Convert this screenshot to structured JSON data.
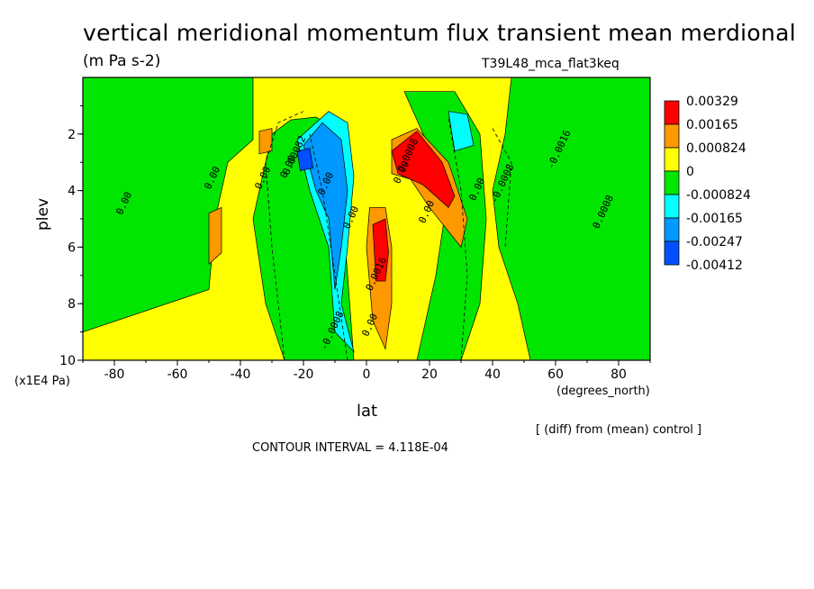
{
  "chart_data": {
    "type": "heatmap",
    "title": "vertical meridional momentum flux transient mean merdional",
    "units": "(m Pa s-2)",
    "experiment": "T39L48_mca_flat3keq",
    "xlabel": "lat",
    "x_units": "(degrees_north)",
    "ylabel": "plev",
    "y_units": "(x1E4 Pa)",
    "x_ticks": [
      "-80",
      "-60",
      "-40",
      "-20",
      "0",
      "20",
      "40",
      "60",
      "80"
    ],
    "y_ticks": [
      "2",
      "4",
      "6",
      "8",
      "10"
    ],
    "xlim": [
      -90,
      90
    ],
    "ylim": [
      10,
      0
    ],
    "note": "[ (diff) from (mean) control ]",
    "contour_interval": "CONTOUR INTERVAL = 4.118E-04",
    "legend": [
      {
        "label": "0.00329",
        "color": "#ff0000"
      },
      {
        "label": "0.00165",
        "color": "#ff9900"
      },
      {
        "label": "0.000824",
        "color": "#ffff00"
      },
      {
        "label": "0",
        "color": "#00e600"
      },
      {
        "label": "-0.000824",
        "color": "#00ffff"
      },
      {
        "label": "-0.00165",
        "color": "#0099ff"
      },
      {
        "label": "-0.00247",
        "color": "#0050ff"
      },
      {
        "label": "-0.00412",
        "color": ""
      }
    ],
    "contour_labels": [
      "0.00",
      "0.00",
      "0.00",
      "0.00",
      "0.00",
      "0.00",
      "0.00",
      "0.00",
      "0.00",
      "0.00",
      "-0.0008",
      "-0.0016",
      "0.0008",
      "0.00082",
      "0.0008",
      "0.0016",
      "-0.0008"
    ],
    "regions": [
      {
        "color": "#00e600",
        "pts": [
          [
            -90,
            0
          ],
          [
            -36,
            0
          ],
          [
            -36,
            2.2
          ],
          [
            -44,
            3
          ],
          [
            -48,
            5
          ],
          [
            -50,
            7.5
          ],
          [
            -90,
            9
          ]
        ]
      },
      {
        "color": "#00e600",
        "pts": [
          [
            46,
            0
          ],
          [
            90,
            0
          ],
          [
            90,
            10
          ],
          [
            52,
            10
          ],
          [
            48,
            8
          ],
          [
            42,
            6
          ],
          [
            40,
            4
          ],
          [
            44,
            2
          ]
        ]
      },
      {
        "color": "#00e600",
        "pts": [
          [
            -30,
            2
          ],
          [
            -24,
            1.5
          ],
          [
            -16,
            1.4
          ],
          [
            -10,
            1.8
          ],
          [
            -8,
            4
          ],
          [
            -6,
            7
          ],
          [
            -4,
            10
          ],
          [
            -26,
            10
          ],
          [
            -32,
            8
          ],
          [
            -36,
            5
          ]
        ]
      },
      {
        "color": "#00e600",
        "pts": [
          [
            12,
            0.5
          ],
          [
            28,
            0.5
          ],
          [
            36,
            2
          ],
          [
            38,
            5
          ],
          [
            36,
            8
          ],
          [
            30,
            10
          ],
          [
            16,
            10
          ],
          [
            22,
            7
          ],
          [
            26,
            4
          ]
        ]
      },
      {
        "color": "#00ffff",
        "pts": [
          [
            -22,
            2.2
          ],
          [
            -12,
            1.2
          ],
          [
            -6,
            1.6
          ],
          [
            -4,
            3.5
          ],
          [
            -6,
            6
          ],
          [
            -8,
            8
          ],
          [
            -4,
            9.7
          ],
          [
            -10,
            9
          ],
          [
            -12,
            6
          ],
          [
            -18,
            4
          ]
        ]
      },
      {
        "color": "#00ffff",
        "pts": [
          [
            26,
            1.2
          ],
          [
            32,
            1.3
          ],
          [
            34,
            2.4
          ],
          [
            28,
            2.6
          ]
        ]
      },
      {
        "color": "#0099ff",
        "pts": [
          [
            -20,
            2.4
          ],
          [
            -14,
            1.6
          ],
          [
            -8,
            2.2
          ],
          [
            -6,
            4
          ],
          [
            -8,
            6
          ],
          [
            -10,
            7.5
          ],
          [
            -12,
            5
          ],
          [
            -16,
            4
          ]
        ]
      },
      {
        "color": "#0050ff",
        "pts": [
          [
            -22,
            2.6
          ],
          [
            -18,
            2.5
          ],
          [
            -17,
            3.2
          ],
          [
            -21,
            3.3
          ]
        ]
      },
      {
        "color": "#ff9900",
        "pts": [
          [
            8,
            2.2
          ],
          [
            16,
            1.8
          ],
          [
            26,
            3
          ],
          [
            32,
            5
          ],
          [
            30,
            6
          ],
          [
            20,
            4.6
          ],
          [
            14,
            3.6
          ],
          [
            8,
            3.4
          ]
        ]
      },
      {
        "color": "#ff9900",
        "pts": [
          [
            1,
            4.6
          ],
          [
            6,
            4.6
          ],
          [
            8,
            6
          ],
          [
            8,
            8
          ],
          [
            6,
            9.6
          ],
          [
            2,
            8.6
          ],
          [
            0,
            6
          ]
        ]
      },
      {
        "color": "#ff9900",
        "pts": [
          [
            -50,
            4.8
          ],
          [
            -46,
            4.6
          ],
          [
            -46,
            6.2
          ],
          [
            -50,
            6.6
          ]
        ]
      },
      {
        "color": "#ff9900",
        "pts": [
          [
            -34,
            1.9
          ],
          [
            -30,
            1.8
          ],
          [
            -30,
            2.6
          ],
          [
            -34,
            2.7
          ]
        ]
      },
      {
        "color": "#ff0000",
        "pts": [
          [
            8,
            2.6
          ],
          [
            16,
            1.9
          ],
          [
            24,
            3
          ],
          [
            28,
            4.2
          ],
          [
            26,
            4.6
          ],
          [
            18,
            3.8
          ],
          [
            10,
            3.4
          ]
        ]
      },
      {
        "color": "#ff0000",
        "pts": [
          [
            2,
            5.2
          ],
          [
            6,
            5.0
          ],
          [
            7,
            6.2
          ],
          [
            6,
            7.2
          ],
          [
            3,
            7.2
          ]
        ]
      }
    ]
  }
}
